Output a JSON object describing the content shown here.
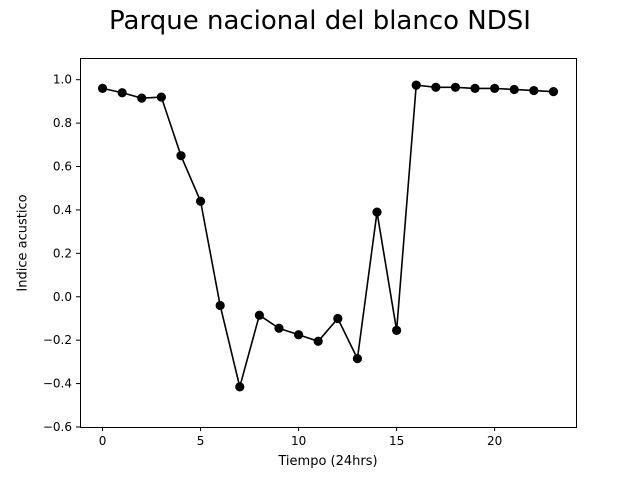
{
  "chart_data": {
    "type": "line",
    "title": "Parque nacional del blanco NDSI",
    "xlabel": "Tiempo (24hrs)",
    "ylabel": "Indice acustico",
    "xlim": [
      -1.15,
      24.15
    ],
    "ylim": [
      -0.6,
      1.1
    ],
    "xticks": [
      0,
      5,
      10,
      15,
      20
    ],
    "xtick_labels": [
      "0",
      "5",
      "10",
      "15",
      "20"
    ],
    "yticks": [
      -0.6,
      -0.4,
      -0.2,
      0.0,
      0.2,
      0.4,
      0.6,
      0.8,
      1.0
    ],
    "ytick_labels": [
      "−0.6",
      "−0.4",
      "−0.2",
      "0.0",
      "0.2",
      "0.4",
      "0.6",
      "0.8",
      "1.0"
    ],
    "grid": false,
    "series": [
      {
        "color": "#000000",
        "marker": "circle",
        "x": [
          0,
          1,
          2,
          3,
          4,
          5,
          6,
          7,
          8,
          9,
          10,
          11,
          12,
          13,
          14,
          15,
          16,
          17,
          18,
          19,
          20,
          21,
          22,
          23
        ],
        "y": [
          0.96,
          0.94,
          0.915,
          0.92,
          0.65,
          0.44,
          -0.04,
          -0.415,
          -0.085,
          -0.145,
          -0.175,
          -0.205,
          -0.1,
          -0.285,
          0.39,
          -0.155,
          0.975,
          0.965,
          0.965,
          0.96,
          0.96,
          0.955,
          0.95,
          0.945
        ]
      }
    ]
  }
}
